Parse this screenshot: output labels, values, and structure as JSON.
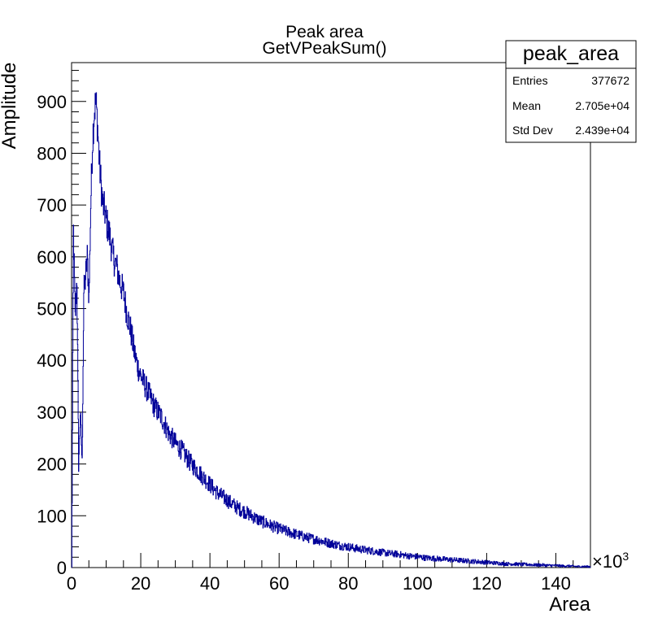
{
  "chart_data": {
    "type": "line",
    "title": "Peak area",
    "subtitle": "GetVPeakSum()",
    "xlabel": "Area",
    "ylabel": "Amplitude",
    "x_multiplier": "×10",
    "x_multiplier_exp": "3",
    "xlim": [
      0,
      150
    ],
    "ylim": [
      0,
      975
    ],
    "x_ticks": [
      "0",
      "20",
      "40",
      "60",
      "80",
      "100",
      "120",
      "140"
    ],
    "y_ticks": [
      "0",
      "100",
      "200",
      "300",
      "400",
      "500",
      "600",
      "700",
      "800",
      "900"
    ],
    "line_color": "#000099",
    "series": [
      {
        "x": [
          0,
          0.5,
          1,
          1.5,
          2,
          2.5,
          3,
          3.5,
          4,
          4.5,
          5,
          5.5,
          6,
          6.5,
          7,
          7.5,
          8,
          8.5,
          9,
          9.5,
          10,
          11,
          12,
          13,
          14,
          15,
          16,
          17,
          18,
          19,
          20,
          22,
          24,
          26,
          28,
          30,
          32,
          34,
          36,
          38,
          40,
          42,
          44,
          46,
          48,
          50,
          52,
          54,
          56,
          58,
          60,
          62,
          64,
          66,
          68,
          70,
          72,
          74,
          76,
          78,
          80,
          82,
          84,
          86,
          88,
          90,
          92,
          94,
          96,
          98,
          100,
          102,
          104,
          106,
          108,
          110,
          112,
          114,
          116,
          118,
          120,
          122,
          124,
          126,
          128,
          130,
          132,
          134,
          136,
          138,
          140,
          142,
          144,
          146,
          148,
          150
        ],
        "values": [
          0,
          650,
          480,
          560,
          200,
          300,
          200,
          530,
          560,
          600,
          520,
          700,
          820,
          880,
          900,
          850,
          780,
          740,
          700,
          690,
          670,
          640,
          600,
          580,
          550,
          530,
          490,
          460,
          420,
          390,
          370,
          340,
          310,
          290,
          260,
          240,
          225,
          205,
          190,
          175,
          160,
          145,
          135,
          125,
          115,
          108,
          100,
          92,
          86,
          80,
          75,
          70,
          66,
          62,
          58,
          55,
          52,
          48,
          45,
          42,
          40,
          37,
          35,
          33,
          31,
          29,
          27,
          26,
          24,
          22,
          21,
          19,
          18,
          17,
          16,
          15,
          14,
          13,
          12,
          11,
          10,
          9,
          8,
          7,
          7,
          6,
          6,
          5,
          5,
          4,
          4,
          3,
          3,
          2,
          2,
          2
        ]
      }
    ]
  },
  "stats_box": {
    "title": "peak_area",
    "rows": [
      {
        "label": "Entries",
        "value": "377672"
      },
      {
        "label": "Mean",
        "value": "2.705e+04"
      },
      {
        "label": "Std Dev",
        "value": "2.439e+04"
      }
    ]
  }
}
